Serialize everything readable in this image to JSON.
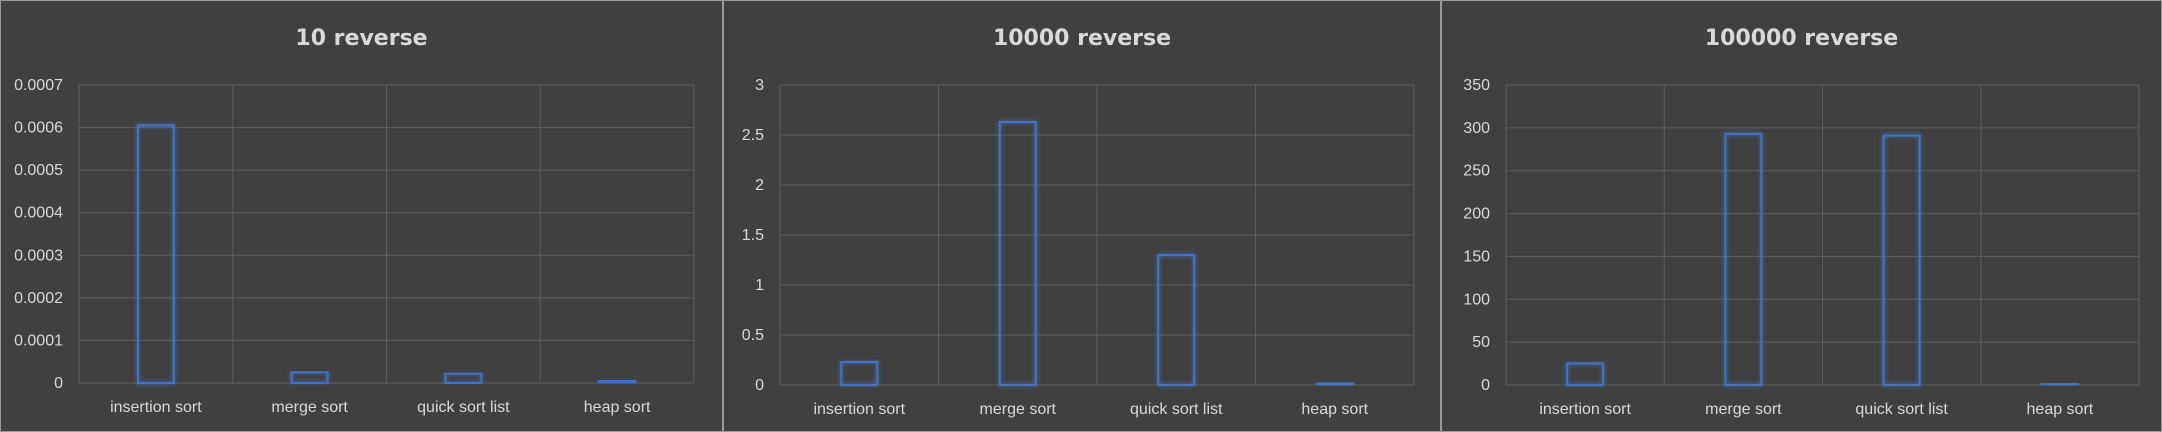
{
  "colors": {
    "background": "#404040",
    "grid": "#5e5e5e",
    "text": "#d9d9d9",
    "bar_outline": "#4472c4"
  },
  "chart_data": [
    {
      "type": "bar",
      "title": "10 reverse",
      "categories": [
        "insertion sort",
        "merge sort",
        "quick sort list",
        "heap sort"
      ],
      "values": [
        0.000605,
        2.5e-05,
        2.2e-05,
        6e-06
      ],
      "yticks": [
        "0",
        "0.0001",
        "0.0002",
        "0.0003",
        "0.0004",
        "0.0005",
        "0.0006",
        "0.0007"
      ],
      "ylim": [
        0,
        0.0007
      ],
      "grid": true
    },
    {
      "type": "bar",
      "title": "10000 reverse",
      "categories": [
        "insertion sort",
        "merge sort",
        "quick sort list",
        "heap sort"
      ],
      "values": [
        0.23,
        2.63,
        1.3,
        0.02
      ],
      "yticks": [
        "0",
        "0.5",
        "1",
        "1.5",
        "2",
        "2.5",
        "3"
      ],
      "ylim": [
        0,
        3
      ],
      "grid": true
    },
    {
      "type": "bar",
      "title": "100000 reverse",
      "categories": [
        "insertion sort",
        "merge sort",
        "quick sort list",
        "heap sort"
      ],
      "values": [
        25,
        293,
        291,
        2
      ],
      "yticks": [
        "0",
        "50",
        "100",
        "150",
        "200",
        "250",
        "300",
        "350"
      ],
      "ylim": [
        0,
        350
      ],
      "grid": true
    }
  ]
}
